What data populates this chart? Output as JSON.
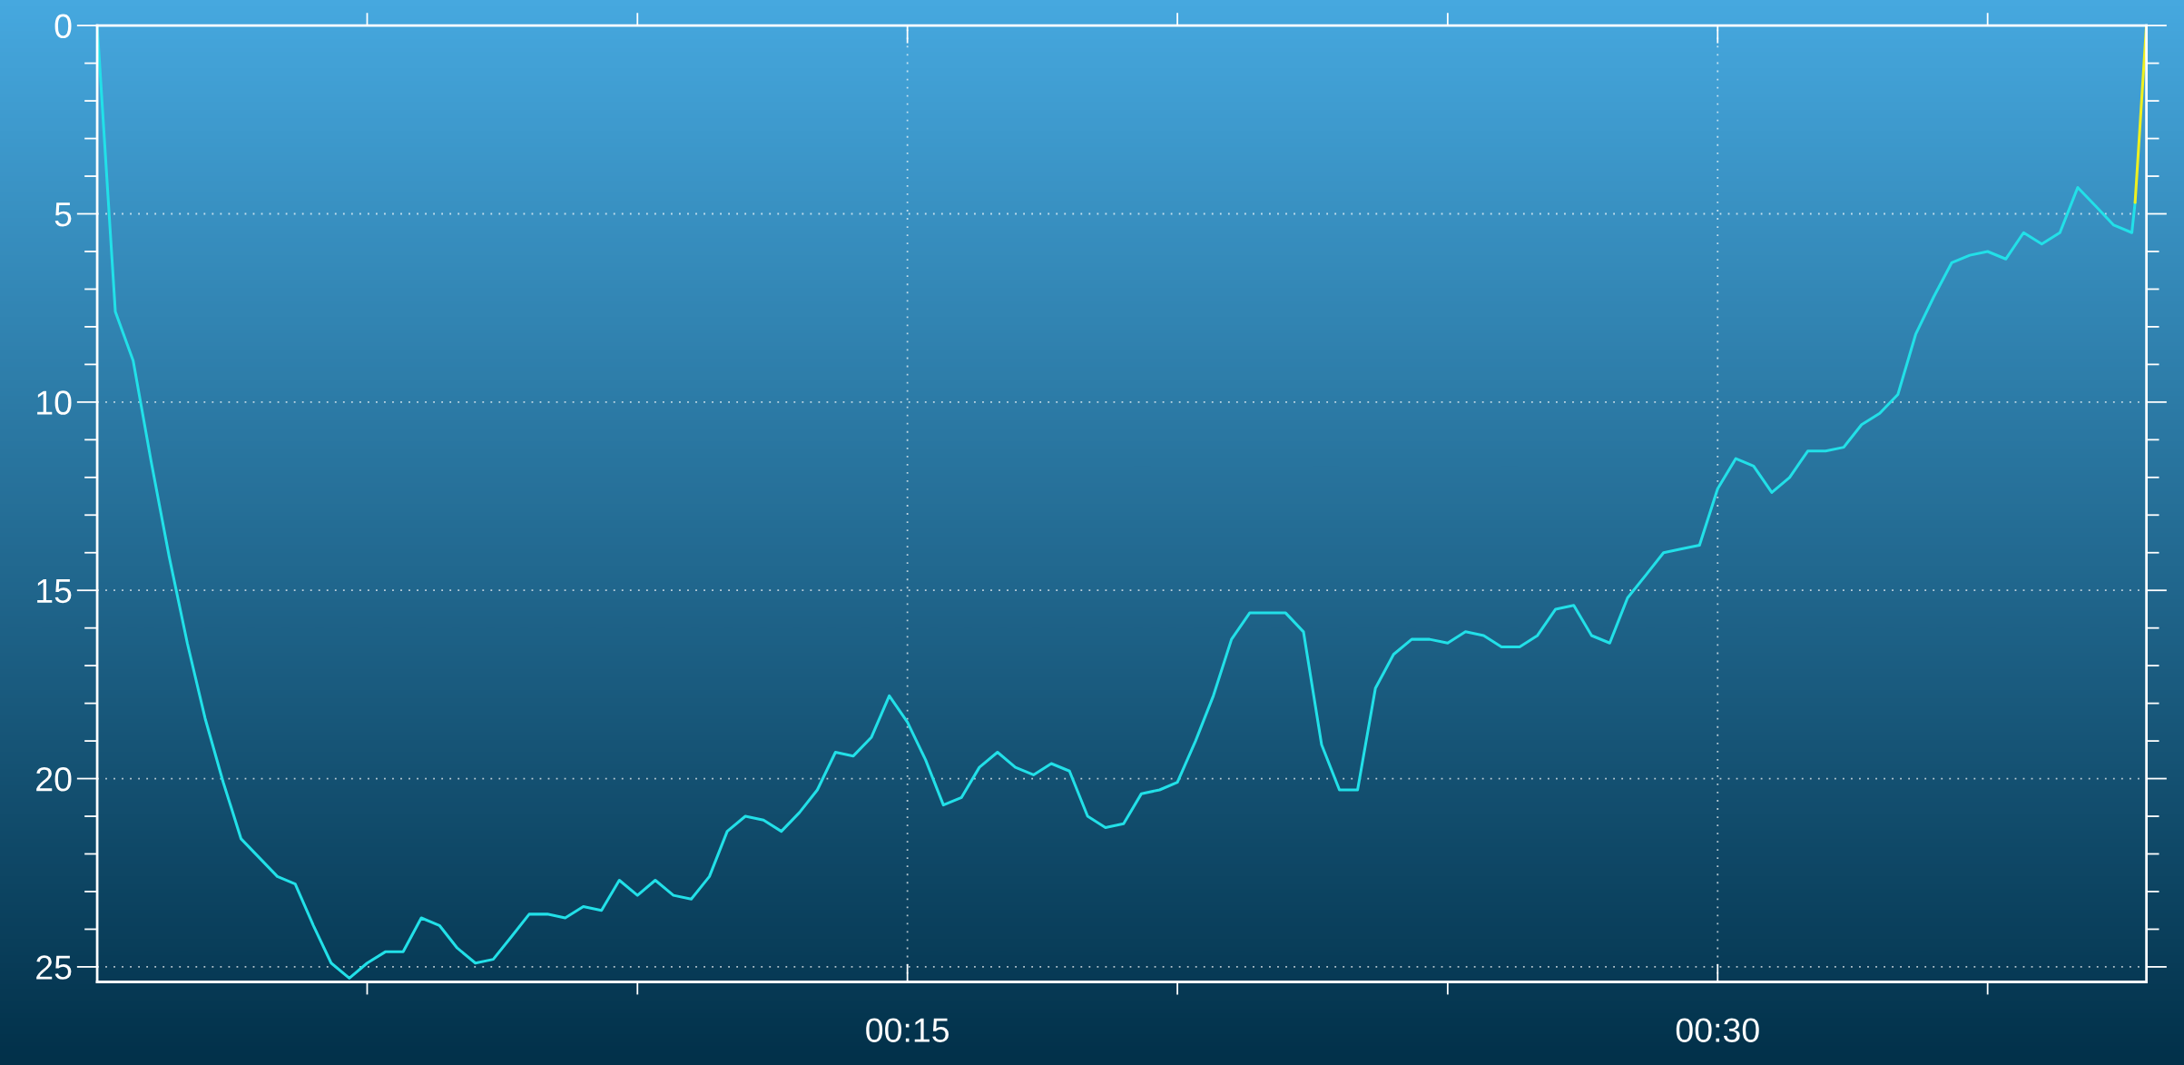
{
  "chart_data": {
    "type": "line",
    "series": [
      {
        "color": "#22e0e8",
        "x": [
          0,
          0.0056,
          0.0111,
          0.0167,
          0.0222,
          0.0278,
          0.0333,
          0.0389,
          0.0444,
          0.05,
          0.0556,
          0.0611,
          0.0667,
          0.0722,
          0.0778,
          0.0833,
          0.0889,
          0.0944,
          0.1,
          0.1056,
          0.1111,
          0.1167,
          0.1222,
          0.1278,
          0.1333,
          0.1389,
          0.1444,
          0.15,
          0.1556,
          0.1611,
          0.1667,
          0.1722,
          0.1778,
          0.1833,
          0.1889,
          0.1944,
          0.2,
          0.2056,
          0.2111,
          0.2167,
          0.2222,
          0.2278,
          0.2333,
          0.2389,
          0.2444,
          0.25,
          0.2556,
          0.2611,
          0.2667,
          0.2722,
          0.2778,
          0.2833,
          0.2889,
          0.2944,
          0.3,
          0.3056,
          0.3111,
          0.3167,
          0.3222,
          0.3278,
          0.3333,
          0.3389,
          0.3444,
          0.35,
          0.3556,
          0.3611,
          0.3667,
          0.3722,
          0.3778,
          0.3833,
          0.3889,
          0.3944,
          0.4,
          0.4056,
          0.4111,
          0.4167,
          0.4222,
          0.4278,
          0.4333,
          0.4389,
          0.4444,
          0.45,
          0.4556,
          0.4611,
          0.4667,
          0.4722,
          0.4778,
          0.4833,
          0.4889,
          0.4944,
          0.5,
          0.5056,
          0.5111,
          0.5167,
          0.5222,
          0.5278,
          0.5333,
          0.5389,
          0.5444,
          0.55,
          0.5556,
          0.5611,
          0.5667,
          0.5722,
          0.5778,
          0.5833,
          0.5889,
          0.5944,
          0.6,
          0.6056,
          0.6111,
          0.6167,
          0.6222,
          0.6278,
          0.6288
        ],
        "values": [
          0,
          7.6,
          8.9,
          11.6,
          14.1,
          16.4,
          18.4,
          20.1,
          21.6,
          22.1,
          22.6,
          22.8,
          23.9,
          24.9,
          25.3,
          24.9,
          24.6,
          24.6,
          23.7,
          23.9,
          24.5,
          24.9,
          24.8,
          24.2,
          23.6,
          23.6,
          23.7,
          23.4,
          23.5,
          22.7,
          23.1,
          22.7,
          23.1,
          23.2,
          22.6,
          21.4,
          21.0,
          21.1,
          21.4,
          20.9,
          20.3,
          19.3,
          19.4,
          18.9,
          17.8,
          18.5,
          19.5,
          20.7,
          20.5,
          19.7,
          19.3,
          19.7,
          19.9,
          19.6,
          19.8,
          21.0,
          21.3,
          21.2,
          20.4,
          20.3,
          20.1,
          19.0,
          17.8,
          16.3,
          15.6,
          15.6,
          15.6,
          16.1,
          19.1,
          20.3,
          20.3,
          17.6,
          16.7,
          16.3,
          16.3,
          16.4,
          16.1,
          16.2,
          16.5,
          16.5,
          16.2,
          15.5,
          15.4,
          16.2,
          16.4,
          15.2,
          14.6,
          14.0,
          13.9,
          13.8,
          12.3,
          11.5,
          11.7,
          12.4,
          12.0,
          11.3,
          11.3,
          11.2,
          10.6,
          10.3,
          9.8,
          8.2,
          7.2,
          6.3,
          6.1,
          6.0,
          6.2,
          5.5,
          5.8,
          5.5,
          4.3,
          4.8,
          5.3,
          5.5,
          4.7
        ]
      },
      {
        "color": "#eef020",
        "x": [
          0.6288,
          0.6323
        ],
        "values": [
          4.7,
          0
        ]
      }
    ],
    "xlim": [
      0,
      0.6323
    ],
    "xticks": [
      {
        "value": 0.0833,
        "label": null
      },
      {
        "value": 0.1667,
        "label": null
      },
      {
        "value": 0.25,
        "label": "00:15"
      },
      {
        "value": 0.3333,
        "label": null
      },
      {
        "value": 0.4167,
        "label": null
      },
      {
        "value": 0.5,
        "label": "00:30"
      },
      {
        "value": 0.5833,
        "label": null
      }
    ],
    "ylim": [
      25.4,
      0
    ],
    "yticks": [
      0,
      {
        "value": 1,
        "label": null
      },
      {
        "value": 2,
        "label": null
      },
      {
        "value": 3,
        "label": null
      },
      {
        "value": 4,
        "label": null
      },
      5,
      {
        "value": 6,
        "label": null
      },
      {
        "value": 7,
        "label": null
      },
      {
        "value": 8,
        "label": null
      },
      {
        "value": 9,
        "label": null
      },
      10,
      {
        "value": 11,
        "label": null
      },
      {
        "value": 12,
        "label": null
      },
      {
        "value": 13,
        "label": null
      },
      {
        "value": 14,
        "label": null
      },
      15,
      {
        "value": 16,
        "label": null
      },
      {
        "value": 17,
        "label": null
      },
      {
        "value": 18,
        "label": null
      },
      {
        "value": 19,
        "label": null
      },
      20,
      {
        "value": 21,
        "label": null
      },
      {
        "value": 22,
        "label": null
      },
      {
        "value": 23,
        "label": null
      },
      {
        "value": 24,
        "label": null
      },
      25
    ],
    "grid": true,
    "line_style": "solid"
  }
}
